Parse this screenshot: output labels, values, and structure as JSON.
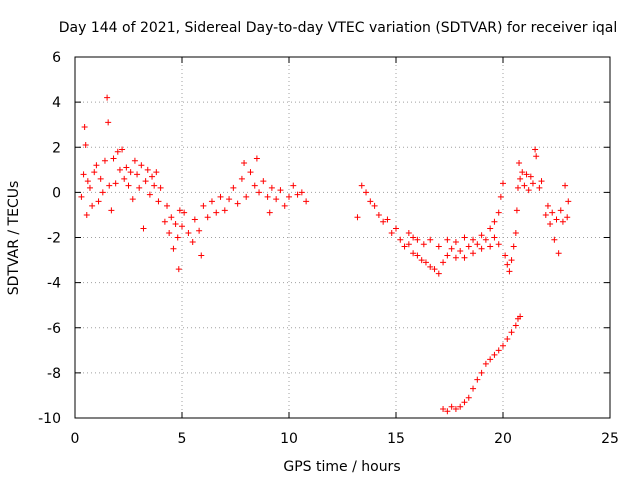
{
  "chart_data": {
    "type": "scatter",
    "title": "Day 144 of 2021, Sidereal Day-to-day VTEC variation (SDTVAR) for receiver iqal",
    "xlabel": "GPS time / hours",
    "ylabel": "SDTVAR / TECUs",
    "xlim": [
      0,
      25
    ],
    "ylim": [
      -10,
      6
    ],
    "x_ticks": [
      0,
      5,
      10,
      15,
      20,
      25
    ],
    "x_tick_labels": [
      "0",
      "5",
      "10",
      "15",
      "20",
      "25"
    ],
    "y_ticks": [
      -10,
      -8,
      -6,
      -4,
      -2,
      0,
      2,
      4,
      6
    ],
    "y_tick_labels": [
      "-10",
      "-8",
      "-6",
      "-4",
      "-2",
      "0",
      "2",
      "4",
      "6"
    ],
    "grid": true,
    "marker": "+",
    "color": "#ff0000",
    "series": [
      {
        "name": "SDTVAR",
        "points": [
          [
            0.3,
            -0.2
          ],
          [
            0.4,
            0.8
          ],
          [
            0.45,
            2.9
          ],
          [
            0.5,
            2.1
          ],
          [
            0.55,
            -1.0
          ],
          [
            0.6,
            0.5
          ],
          [
            0.7,
            0.2
          ],
          [
            0.8,
            -0.6
          ],
          [
            0.9,
            0.9
          ],
          [
            1.0,
            1.2
          ],
          [
            1.1,
            -0.4
          ],
          [
            1.2,
            0.6
          ],
          [
            1.3,
            0.0
          ],
          [
            1.4,
            1.4
          ],
          [
            1.5,
            4.2
          ],
          [
            1.55,
            3.1
          ],
          [
            1.6,
            0.3
          ],
          [
            1.7,
            -0.8
          ],
          [
            1.8,
            1.5
          ],
          [
            1.9,
            0.4
          ],
          [
            2.0,
            1.8
          ],
          [
            2.1,
            1.0
          ],
          [
            2.2,
            1.9
          ],
          [
            2.3,
            0.6
          ],
          [
            2.4,
            1.1
          ],
          [
            2.5,
            0.3
          ],
          [
            2.6,
            0.9
          ],
          [
            2.7,
            -0.3
          ],
          [
            2.8,
            1.4
          ],
          [
            2.9,
            0.8
          ],
          [
            3.0,
            0.2
          ],
          [
            3.1,
            1.2
          ],
          [
            3.2,
            -1.6
          ],
          [
            3.3,
            0.5
          ],
          [
            3.4,
            1.0
          ],
          [
            3.5,
            -0.1
          ],
          [
            3.6,
            0.7
          ],
          [
            3.7,
            0.3
          ],
          [
            3.8,
            0.9
          ],
          [
            3.9,
            -0.4
          ],
          [
            4.0,
            0.2
          ],
          [
            4.2,
            -1.3
          ],
          [
            4.3,
            -0.6
          ],
          [
            4.4,
            -1.8
          ],
          [
            4.5,
            -1.1
          ],
          [
            4.6,
            -2.5
          ],
          [
            4.7,
            -1.4
          ],
          [
            4.8,
            -2.0
          ],
          [
            4.85,
            -3.4
          ],
          [
            4.9,
            -0.8
          ],
          [
            5.0,
            -1.5
          ],
          [
            5.1,
            -0.9
          ],
          [
            5.3,
            -1.8
          ],
          [
            5.5,
            -2.2
          ],
          [
            5.6,
            -1.2
          ],
          [
            5.8,
            -1.7
          ],
          [
            5.9,
            -2.8
          ],
          [
            6.0,
            -0.6
          ],
          [
            6.2,
            -1.1
          ],
          [
            6.4,
            -0.4
          ],
          [
            6.6,
            -0.9
          ],
          [
            6.8,
            -0.2
          ],
          [
            7.0,
            -0.8
          ],
          [
            7.2,
            -0.3
          ],
          [
            7.4,
            0.2
          ],
          [
            7.6,
            -0.5
          ],
          [
            7.8,
            0.6
          ],
          [
            7.9,
            1.3
          ],
          [
            8.0,
            -0.2
          ],
          [
            8.2,
            0.9
          ],
          [
            8.4,
            0.3
          ],
          [
            8.5,
            1.5
          ],
          [
            8.6,
            0.0
          ],
          [
            8.8,
            0.5
          ],
          [
            9.0,
            -0.2
          ],
          [
            9.1,
            -0.9
          ],
          [
            9.2,
            0.2
          ],
          [
            9.4,
            -0.3
          ],
          [
            9.6,
            0.1
          ],
          [
            9.8,
            -0.6
          ],
          [
            10.0,
            -0.2
          ],
          [
            10.2,
            0.3
          ],
          [
            10.4,
            -0.1
          ],
          [
            10.6,
            0.0
          ],
          [
            10.8,
            -0.4
          ],
          [
            13.2,
            -1.1
          ],
          [
            13.4,
            0.3
          ],
          [
            13.6,
            0.0
          ],
          [
            13.8,
            -0.4
          ],
          [
            14.0,
            -0.6
          ],
          [
            14.2,
            -1.0
          ],
          [
            14.4,
            -1.3
          ],
          [
            14.6,
            -1.2
          ],
          [
            14.8,
            -1.8
          ],
          [
            15.0,
            -1.6
          ],
          [
            15.2,
            -2.1
          ],
          [
            15.4,
            -2.4
          ],
          [
            15.6,
            -2.3
          ],
          [
            15.8,
            -2.7
          ],
          [
            16.0,
            -2.8
          ],
          [
            16.2,
            -3.0
          ],
          [
            16.4,
            -3.1
          ],
          [
            16.6,
            -3.3
          ],
          [
            16.8,
            -3.4
          ],
          [
            17.0,
            -3.6
          ],
          [
            15.6,
            -1.8
          ],
          [
            15.8,
            -2.0
          ],
          [
            16.0,
            -2.1
          ],
          [
            16.3,
            -2.3
          ],
          [
            16.6,
            -2.1
          ],
          [
            17.0,
            -2.4
          ],
          [
            17.2,
            -3.1
          ],
          [
            17.4,
            -2.8
          ],
          [
            17.6,
            -2.5
          ],
          [
            17.8,
            -2.9
          ],
          [
            18.0,
            -2.6
          ],
          [
            18.2,
            -2.9
          ],
          [
            18.4,
            -2.4
          ],
          [
            18.6,
            -2.7
          ],
          [
            18.8,
            -2.3
          ],
          [
            19.0,
            -2.5
          ],
          [
            19.2,
            -2.1
          ],
          [
            19.4,
            -2.4
          ],
          [
            19.6,
            -2.0
          ],
          [
            19.8,
            -2.3
          ],
          [
            17.4,
            -2.1
          ],
          [
            17.8,
            -2.2
          ],
          [
            18.2,
            -2.0
          ],
          [
            18.6,
            -2.1
          ],
          [
            19.0,
            -1.9
          ],
          [
            19.4,
            -1.6
          ],
          [
            19.6,
            -1.3
          ],
          [
            19.8,
            -0.9
          ],
          [
            19.9,
            -0.2
          ],
          [
            20.0,
            0.4
          ],
          [
            20.1,
            -2.8
          ],
          [
            20.2,
            -3.2
          ],
          [
            20.3,
            -3.5
          ],
          [
            20.4,
            -3.0
          ],
          [
            20.5,
            -2.4
          ],
          [
            20.6,
            -1.8
          ],
          [
            20.65,
            -0.8
          ],
          [
            20.7,
            0.2
          ],
          [
            20.75,
            1.3
          ],
          [
            20.8,
            0.6
          ],
          [
            20.9,
            0.9
          ],
          [
            21.0,
            0.3
          ],
          [
            21.1,
            0.8
          ],
          [
            21.2,
            0.1
          ],
          [
            21.3,
            0.7
          ],
          [
            21.4,
            0.4
          ],
          [
            21.5,
            1.9
          ],
          [
            21.55,
            1.6
          ],
          [
            21.7,
            0.2
          ],
          [
            21.8,
            0.5
          ],
          [
            22.0,
            -1.0
          ],
          [
            22.1,
            -0.6
          ],
          [
            22.2,
            -1.4
          ],
          [
            22.3,
            -0.9
          ],
          [
            22.4,
            -2.1
          ],
          [
            22.5,
            -1.2
          ],
          [
            22.6,
            -2.7
          ],
          [
            22.7,
            -0.8
          ],
          [
            22.8,
            -1.3
          ],
          [
            22.9,
            0.3
          ],
          [
            23.0,
            -1.1
          ],
          [
            23.05,
            -0.4
          ],
          [
            17.2,
            -9.6
          ],
          [
            17.4,
            -9.7
          ],
          [
            17.6,
            -9.5
          ],
          [
            17.8,
            -9.6
          ],
          [
            18.0,
            -9.5
          ],
          [
            18.2,
            -9.3
          ],
          [
            18.4,
            -9.1
          ],
          [
            18.6,
            -8.7
          ],
          [
            18.8,
            -8.3
          ],
          [
            19.0,
            -8.0
          ],
          [
            19.2,
            -7.6
          ],
          [
            19.4,
            -7.4
          ],
          [
            19.6,
            -7.2
          ],
          [
            19.8,
            -7.0
          ],
          [
            20.0,
            -6.8
          ],
          [
            20.2,
            -6.5
          ],
          [
            20.4,
            -6.2
          ],
          [
            20.6,
            -5.9
          ],
          [
            20.7,
            -5.6
          ],
          [
            20.8,
            -5.5
          ]
        ]
      }
    ]
  }
}
